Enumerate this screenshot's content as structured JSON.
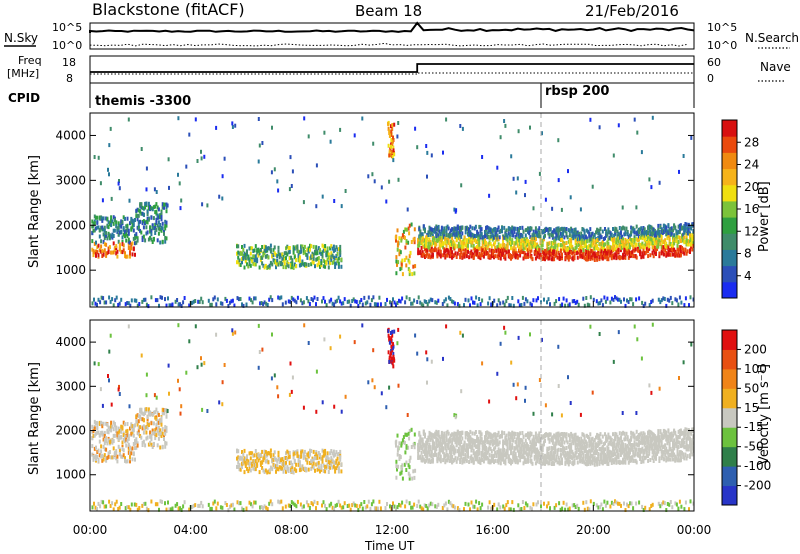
{
  "header": {
    "station": "Blackstone (fitACF)",
    "beam": "Beam 18",
    "date": "21/Feb/2016"
  },
  "status_panels": {
    "nsky_label": "N.Sky",
    "nsearch_label": "N.Search",
    "noise_ticks_left": [
      "10^5",
      "10^0"
    ],
    "noise_ticks_right": [
      "10^5",
      "10^0"
    ],
    "freq_label_1": "Freq",
    "freq_label_2": "[MHz]",
    "freq_ticks": [
      "18",
      "8"
    ],
    "nave_label": "Nave",
    "nave_ticks": [
      "60",
      "0"
    ],
    "cpid_label": "CPID",
    "cpid_segments": [
      {
        "label": "themis -3300",
        "start_hr": 0.0
      },
      {
        "label": "rbsp 200",
        "start_hr": 18.0
      }
    ]
  },
  "chart_data": [
    {
      "type": "heatmap",
      "name": "power",
      "ylabel": "Slant Range [km]",
      "ylim": [
        180,
        4500
      ],
      "yticks": [
        1000,
        2000,
        3000,
        4000
      ],
      "xlim": [
        0,
        24
      ],
      "colorbar": {
        "label": "Power [dB]",
        "ticks": [
          "4",
          "8",
          "12",
          "16",
          "20",
          "24",
          "28"
        ],
        "colors": [
          "#1a2cf0",
          "#2b4fb8",
          "#2a7a9a",
          "#3f8c6a",
          "#2f9f40",
          "#7cc33a",
          "#f0df10",
          "#f6b31a",
          "#f08a10",
          "#ea4a0d",
          "#d81010"
        ]
      }
    },
    {
      "type": "heatmap",
      "name": "velocity",
      "ylabel": "Slant Range [km]",
      "ylim": [
        180,
        4500
      ],
      "yticks": [
        1000,
        2000,
        3000,
        4000
      ],
      "xlim": [
        0,
        24
      ],
      "xlabel": "Time UT",
      "xticks": [
        "00:00",
        "04:00",
        "08:00",
        "12:00",
        "16:00",
        "20:00",
        "00:00"
      ],
      "colorbar": {
        "label": "Velocity [m s⁻¹]",
        "ticks": [
          "200",
          "100",
          "50",
          "15",
          "-15",
          "-50",
          "-100",
          "-200"
        ],
        "colors": [
          "#2835c8",
          "#2e5fb0",
          "#2f7f4a",
          "#6cc23e",
          "#c8c8c0",
          "#f0b020",
          "#f08418",
          "#e85012",
          "#e01010"
        ]
      }
    }
  ]
}
